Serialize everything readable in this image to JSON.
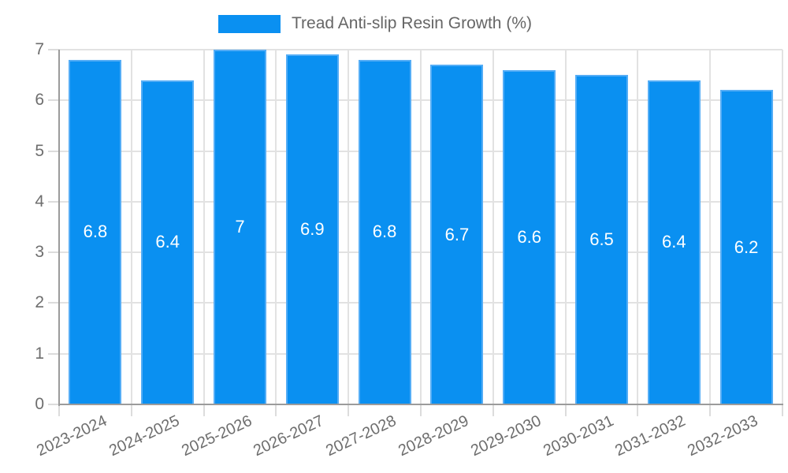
{
  "legend": {
    "label": "Tread Anti-slip Resin Growth (%)"
  },
  "chart_data": {
    "type": "bar",
    "title": "Tread Anti-slip Resin Growth (%)",
    "categories": [
      "2023-2024",
      "2024-2025",
      "2025-2026",
      "2026-2027",
      "2027-2028",
      "2028-2029",
      "2029-2030",
      "2030-2031",
      "2031-2032",
      "2032-2033"
    ],
    "values": [
      6.8,
      6.4,
      7,
      6.9,
      6.8,
      6.7,
      6.6,
      6.5,
      6.4,
      6.2
    ],
    "value_labels": [
      "6.8",
      "6.4",
      "7",
      "6.9",
      "6.8",
      "6.7",
      "6.6",
      "6.5",
      "6.4",
      "6.2"
    ],
    "xlabel": "",
    "ylabel": "",
    "ylim": [
      0,
      7
    ],
    "yticks": [
      0,
      1,
      2,
      3,
      4,
      5,
      6,
      7
    ],
    "grid": true,
    "legend_position": "top",
    "colors": {
      "bar_fill": "#0a90f1",
      "bar_border": "#54adf6",
      "gridline": "#e2e2e2",
      "axis_line": "#9b9b9b",
      "tick_mark": "#dcdcdc",
      "tick_text": "#6e6e6e",
      "legend_text": "#666666",
      "value_label_text": "#ffffff",
      "background": "#ffffff"
    }
  }
}
